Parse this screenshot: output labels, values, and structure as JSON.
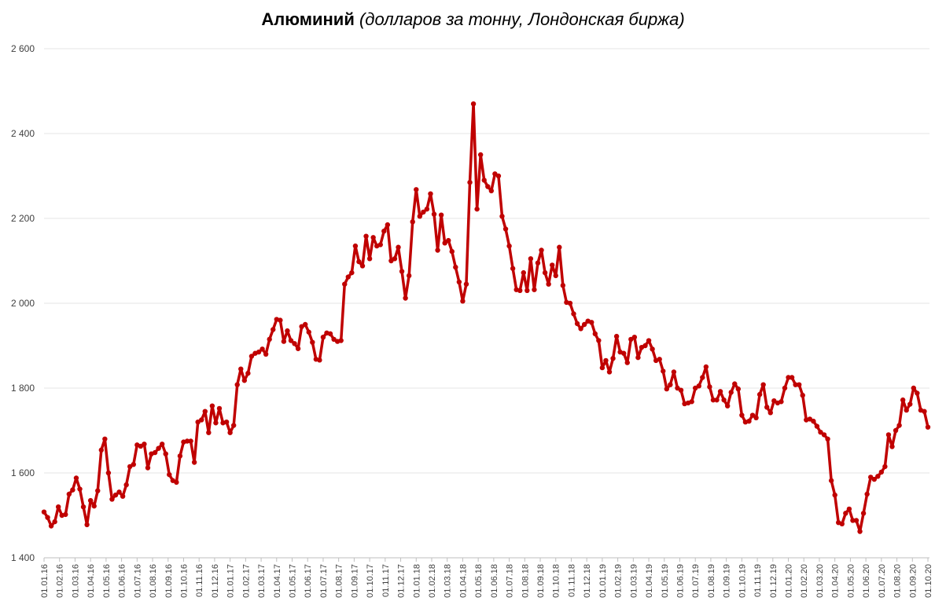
{
  "chart_data": {
    "type": "line",
    "title_main": "Алюминий",
    "title_sub": "(долларов за тонну, Лондонская биржа)",
    "xlabel": "",
    "ylabel": "",
    "ylim": [
      1400,
      2600
    ],
    "y_ticks": [
      "1 400",
      "1 600",
      "1 800",
      "2 000",
      "2 200",
      "2 400",
      "2 600"
    ],
    "grid": true,
    "legend": "none",
    "line_color": "#C00000",
    "x_ticks": [
      "01.01.16",
      "01.02.16",
      "01.03.16",
      "01.04.16",
      "01.05.16",
      "01.06.16",
      "01.07.16",
      "01.08.16",
      "01.09.16",
      "01.10.16",
      "01.11.16",
      "01.12.16",
      "01.01.17",
      "01.02.17",
      "01.03.17",
      "01.04.17",
      "01.05.17",
      "01.06.17",
      "01.07.17",
      "01.08.17",
      "01.09.17",
      "01.10.17",
      "01.11.17",
      "01.12.17",
      "01.01.18",
      "01.02.18",
      "01.03.18",
      "01.04.18",
      "01.05.18",
      "01.06.18",
      "01.07.18",
      "01.08.18",
      "01.09.18",
      "01.10.18",
      "01.11.18",
      "01.12.18",
      "01.01.19",
      "01.02.19",
      "01.03.19",
      "01.04.19",
      "01.05.19",
      "01.06.19",
      "01.07.19",
      "01.08.19",
      "01.09.19",
      "01.10.19",
      "01.11.19",
      "01.12.19",
      "01.01.20",
      "01.02.20",
      "01.03.20",
      "01.04.20",
      "01.05.20",
      "01.06.20",
      "01.07.20",
      "01.08.20",
      "01.09.20",
      "01.10.20"
    ],
    "values": [
      1508,
      1495,
      1475,
      1485,
      1520,
      1500,
      1502,
      1550,
      1560,
      1588,
      1562,
      1520,
      1478,
      1535,
      1522,
      1558,
      1654,
      1680,
      1600,
      1538,
      1548,
      1555,
      1545,
      1572,
      1615,
      1620,
      1666,
      1663,
      1668,
      1612,
      1645,
      1648,
      1658,
      1668,
      1645,
      1596,
      1582,
      1578,
      1640,
      1673,
      1675,
      1675,
      1625,
      1720,
      1725,
      1745,
      1695,
      1758,
      1718,
      1752,
      1718,
      1720,
      1695,
      1712,
      1808,
      1845,
      1818,
      1835,
      1875,
      1882,
      1885,
      1892,
      1880,
      1915,
      1938,
      1962,
      1960,
      1910,
      1935,
      1912,
      1905,
      1893,
      1945,
      1950,
      1932,
      1908,
      1868,
      1866,
      1920,
      1930,
      1928,
      1915,
      1910,
      1912,
      2045,
      2062,
      2072,
      2135,
      2098,
      2088,
      2158,
      2105,
      2155,
      2135,
      2138,
      2170,
      2185,
      2100,
      2105,
      2132,
      2075,
      2012,
      2065,
      2192,
      2268,
      2205,
      2215,
      2222,
      2258,
      2210,
      2125,
      2208,
      2142,
      2148,
      2122,
      2085,
      2050,
      2005,
      2045,
      2285,
      2470,
      2222,
      2350,
      2290,
      2275,
      2265,
      2305,
      2300,
      2205,
      2175,
      2135,
      2082,
      2032,
      2030,
      2072,
      2030,
      2105,
      2032,
      2095,
      2125,
      2072,
      2045,
      2090,
      2065,
      2132,
      2042,
      2002,
      2000,
      1975,
      1952,
      1940,
      1950,
      1958,
      1955,
      1928,
      1912,
      1848,
      1865,
      1838,
      1870,
      1922,
      1885,
      1882,
      1860,
      1915,
      1920,
      1872,
      1896,
      1900,
      1912,
      1892,
      1865,
      1868,
      1840,
      1798,
      1808,
      1838,
      1800,
      1795,
      1763,
      1765,
      1768,
      1800,
      1805,
      1825,
      1850,
      1803,
      1772,
      1772,
      1792,
      1772,
      1758,
      1790,
      1810,
      1798,
      1736,
      1720,
      1722,
      1736,
      1730,
      1785,
      1808,
      1755,
      1742,
      1770,
      1765,
      1768,
      1800,
      1825,
      1825,
      1808,
      1808,
      1783,
      1725,
      1727,
      1722,
      1710,
      1696,
      1690,
      1680,
      1582,
      1548,
      1483,
      1480,
      1505,
      1515,
      1488,
      1488,
      1462,
      1505,
      1550,
      1590,
      1585,
      1592,
      1602,
      1615,
      1690,
      1662,
      1700,
      1712,
      1772,
      1748,
      1762,
      1800,
      1788,
      1748,
      1745,
      1708
    ]
  }
}
